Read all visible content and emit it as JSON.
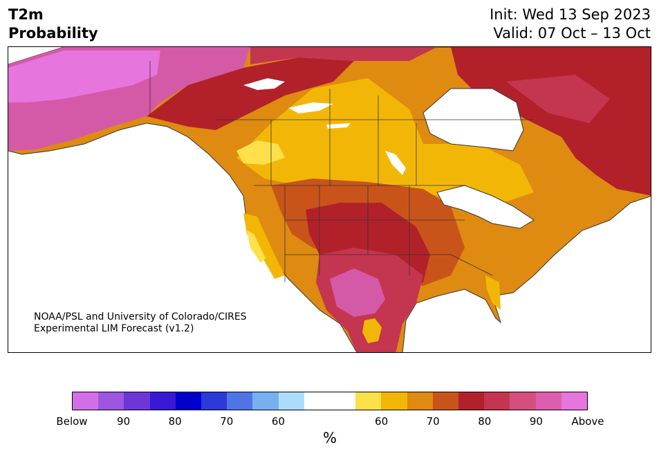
{
  "title": {
    "line1": "T2m",
    "line2": "Probability"
  },
  "init": {
    "line1": "Init: Wed 13 Sep 2023",
    "line2": "Valid: 07 Oct – 13 Oct"
  },
  "credit": {
    "line1": "NOAA/PSL and University of Colorado/CIRES",
    "line2": "Experimental LIM Forecast (v1.2)"
  },
  "colorbar": {
    "colors": [
      "#d26fe8",
      "#9e55e0",
      "#6e36d9",
      "#3a18d4",
      "#0000cc",
      "#2b3ad9",
      "#4f74e6",
      "#76b0f0",
      "#acdcfb",
      "#ffffff",
      "#ffffff",
      "#fee04a",
      "#f2b706",
      "#df8a10",
      "#c9541a",
      "#b2212a",
      "#c43550",
      "#d44f7e",
      "#db5fae",
      "#e775de"
    ],
    "ticks": [
      "Below",
      "90",
      "80",
      "70",
      "60",
      "60",
      "70",
      "80",
      "90",
      "Above"
    ],
    "unit": "%"
  },
  "map": {
    "categories": {
      "purple": "#e775de",
      "pink": "#d45aa8",
      "rose": "#c43550",
      "red": "#b2212a",
      "rust": "#c9541a",
      "orange": "#df8a10",
      "gold": "#f2b706",
      "yellow": "#fee04a",
      "nodata": "#ffffff"
    }
  }
}
